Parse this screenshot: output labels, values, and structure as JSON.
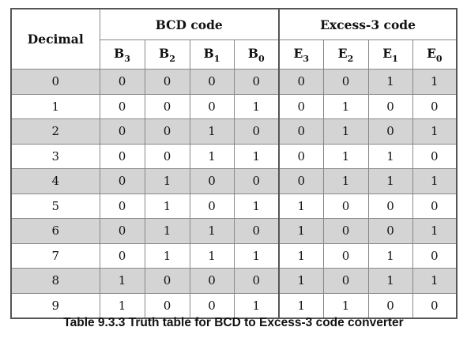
{
  "table": {
    "header": {
      "decimal": "Decimal",
      "group1": "BCD code",
      "group2": "Excess-3 code",
      "columns": [
        {
          "letter": "B",
          "sub": "3"
        },
        {
          "letter": "B",
          "sub": "2"
        },
        {
          "letter": "B",
          "sub": "1"
        },
        {
          "letter": "B",
          "sub": "0"
        },
        {
          "letter": "E",
          "sub": "3"
        },
        {
          "letter": "E",
          "sub": "2"
        },
        {
          "letter": "E",
          "sub": "1"
        },
        {
          "letter": "E",
          "sub": "0"
        }
      ]
    },
    "rows": [
      [
        "0",
        "0",
        "0",
        "0",
        "0",
        "0",
        "0",
        "1",
        "1"
      ],
      [
        "1",
        "0",
        "0",
        "0",
        "1",
        "0",
        "1",
        "0",
        "0"
      ],
      [
        "2",
        "0",
        "0",
        "1",
        "0",
        "0",
        "1",
        "0",
        "1"
      ],
      [
        "3",
        "0",
        "0",
        "1",
        "1",
        "0",
        "1",
        "1",
        "0"
      ],
      [
        "4",
        "0",
        "1",
        "0",
        "0",
        "0",
        "1",
        "1",
        "1"
      ],
      [
        "5",
        "0",
        "1",
        "0",
        "1",
        "1",
        "0",
        "0",
        "0"
      ],
      [
        "6",
        "0",
        "1",
        "1",
        "0",
        "1",
        "0",
        "0",
        "1"
      ],
      [
        "7",
        "0",
        "1",
        "1",
        "1",
        "1",
        "0",
        "1",
        "0"
      ],
      [
        "8",
        "1",
        "0",
        "0",
        "0",
        "1",
        "0",
        "1",
        "1"
      ],
      [
        "9",
        "1",
        "0",
        "0",
        "1",
        "1",
        "1",
        "0",
        "0"
      ]
    ]
  },
  "caption": "Table 9.3.3 Truth table for BCD to Excess-3 code converter"
}
